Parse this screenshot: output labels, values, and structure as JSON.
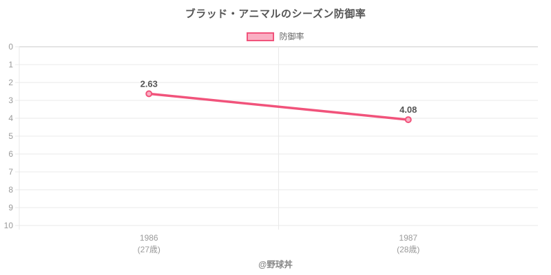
{
  "page": {
    "credit": "@野球丼"
  },
  "colors": {
    "series": "#F1537B",
    "series_fill": "#FAAFC3",
    "grid": "#E9E9E9",
    "grid_strong": "#C9C9C9",
    "tick_label": "#9A9A9A",
    "point_label": "#555555",
    "title": "#555555",
    "legend_text": "#666666"
  },
  "chart_data": {
    "type": "line",
    "title": "ブラッド・アニマルのシーズン防御率",
    "legend_position": "top",
    "grid": true,
    "categories": [
      "1986",
      "1987"
    ],
    "category_sublabels": [
      "(27歳)",
      "(28歳)"
    ],
    "series": [
      {
        "name": "防御率",
        "values": [
          2.63,
          4.08
        ],
        "point_labels": [
          "2.63",
          "4.08"
        ]
      }
    ],
    "xlabel": "",
    "ylabel": "",
    "y_axis": {
      "min": 0,
      "max": 10,
      "step": 1,
      "reversed": true
    }
  }
}
